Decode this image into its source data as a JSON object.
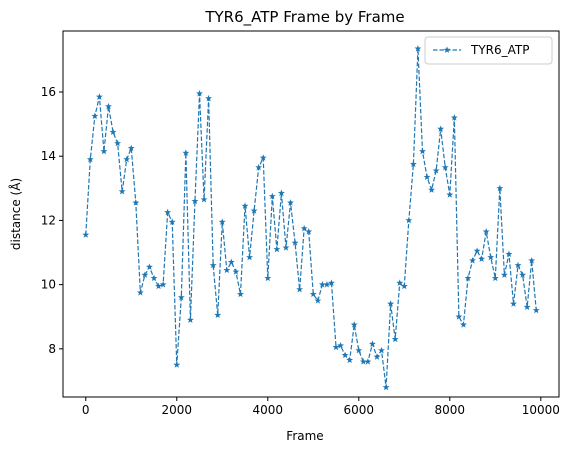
{
  "chart_data": {
    "type": "line",
    "title": "TYR6_ATP Frame by Frame",
    "xlabel": "Frame",
    "ylabel": "distance (Å)",
    "xlim": [
      -500,
      10400
    ],
    "ylim": [
      6.5,
      17.9
    ],
    "xticks": [
      0,
      2000,
      4000,
      6000,
      8000,
      10000
    ],
    "xtick_labels": [
      "0",
      "2000",
      "4000",
      "6000",
      "8000",
      "10000"
    ],
    "yticks": [
      8,
      10,
      12,
      14,
      16
    ],
    "ytick_labels": [
      "8",
      "10",
      "12",
      "14",
      "16"
    ],
    "grid": false,
    "legend_position": "top-right",
    "line_color": "#1f77b4",
    "line_style": "dashed",
    "marker": "star",
    "series": [
      {
        "name": "TYR6_ATP",
        "x": [
          0,
          100,
          200,
          300,
          400,
          500,
          600,
          700,
          800,
          900,
          1000,
          1100,
          1200,
          1300,
          1400,
          1500,
          1600,
          1700,
          1800,
          1900,
          2000,
          2100,
          2200,
          2300,
          2400,
          2500,
          2600,
          2700,
          2800,
          2900,
          3000,
          3100,
          3200,
          3300,
          3400,
          3500,
          3600,
          3700,
          3800,
          3900,
          4000,
          4100,
          4200,
          4300,
          4400,
          4500,
          4600,
          4700,
          4800,
          4900,
          5000,
          5100,
          5200,
          5300,
          5400,
          5500,
          5600,
          5700,
          5800,
          5900,
          6000,
          6100,
          6200,
          6300,
          6400,
          6500,
          6600,
          6700,
          6800,
          6900,
          7000,
          7100,
          7200,
          7300,
          7400,
          7500,
          7600,
          7700,
          7800,
          7900,
          8000,
          8100,
          8200,
          8300,
          8400,
          8500,
          8600,
          8700,
          8800,
          8900,
          9000,
          9100,
          9200,
          9300,
          9400,
          9500,
          9600,
          9700,
          9800,
          9900
        ],
        "values": [
          11.55,
          13.9,
          15.25,
          15.85,
          14.15,
          15.55,
          14.75,
          14.4,
          12.9,
          13.9,
          14.25,
          12.55,
          9.75,
          10.3,
          10.55,
          10.2,
          9.95,
          10.0,
          12.25,
          11.95,
          7.5,
          9.6,
          14.1,
          8.9,
          12.6,
          15.95,
          12.65,
          15.8,
          10.6,
          9.05,
          11.95,
          10.45,
          10.7,
          10.4,
          9.7,
          12.45,
          10.85,
          12.3,
          13.65,
          13.95,
          10.2,
          12.75,
          11.1,
          12.85,
          11.15,
          12.55,
          11.3,
          9.85,
          11.75,
          11.65,
          9.7,
          9.5,
          10.0,
          10.0,
          10.05,
          8.05,
          8.1,
          7.8,
          7.65,
          8.75,
          7.95,
          7.6,
          7.6,
          8.15,
          7.75,
          7.95,
          6.8,
          9.4,
          8.3,
          10.05,
          9.95,
          12.0,
          13.75,
          17.35,
          14.15,
          13.35,
          12.95,
          13.55,
          14.85,
          13.65,
          12.8,
          15.2,
          9.0,
          8.75,
          10.2,
          10.75,
          11.05,
          10.8,
          11.65,
          10.85,
          10.2,
          13.0,
          10.3,
          10.95,
          9.4,
          10.6,
          10.3,
          9.3,
          10.75,
          9.2
        ]
      }
    ]
  }
}
